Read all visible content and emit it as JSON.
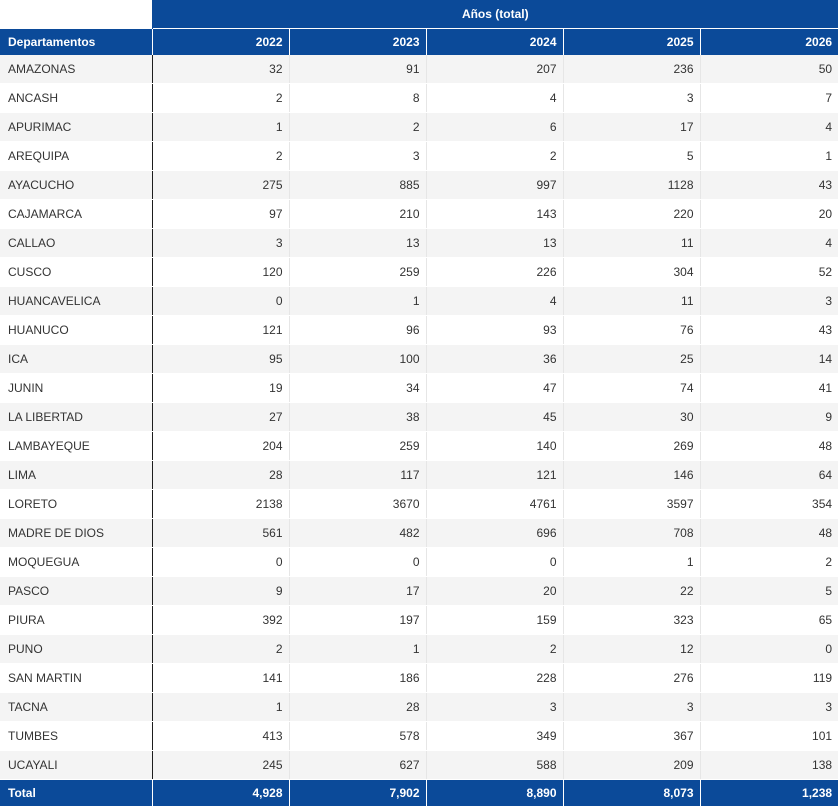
{
  "table": {
    "group_header": "Años (total)",
    "dept_header": "Departamentos",
    "years": [
      "2022",
      "2023",
      "2024",
      "2025",
      "2026"
    ],
    "rows": [
      {
        "dept": "AMAZONAS",
        "values": [
          "32",
          "91",
          "207",
          "236",
          "50"
        ]
      },
      {
        "dept": "ANCASH",
        "values": [
          "2",
          "8",
          "4",
          "3",
          "7"
        ]
      },
      {
        "dept": "APURIMAC",
        "values": [
          "1",
          "2",
          "6",
          "17",
          "4"
        ]
      },
      {
        "dept": "AREQUIPA",
        "values": [
          "2",
          "3",
          "2",
          "5",
          "1"
        ]
      },
      {
        "dept": "AYACUCHO",
        "values": [
          "275",
          "885",
          "997",
          "1128",
          "43"
        ]
      },
      {
        "dept": "CAJAMARCA",
        "values": [
          "97",
          "210",
          "143",
          "220",
          "20"
        ]
      },
      {
        "dept": "CALLAO",
        "values": [
          "3",
          "13",
          "13",
          "11",
          "4"
        ]
      },
      {
        "dept": "CUSCO",
        "values": [
          "120",
          "259",
          "226",
          "304",
          "52"
        ]
      },
      {
        "dept": "HUANCAVELICA",
        "values": [
          "0",
          "1",
          "4",
          "11",
          "3"
        ]
      },
      {
        "dept": "HUANUCO",
        "values": [
          "121",
          "96",
          "93",
          "76",
          "43"
        ]
      },
      {
        "dept": "ICA",
        "values": [
          "95",
          "100",
          "36",
          "25",
          "14"
        ]
      },
      {
        "dept": "JUNIN",
        "values": [
          "19",
          "34",
          "47",
          "74",
          "41"
        ]
      },
      {
        "dept": "LA LIBERTAD",
        "values": [
          "27",
          "38",
          "45",
          "30",
          "9"
        ]
      },
      {
        "dept": "LAMBAYEQUE",
        "values": [
          "204",
          "259",
          "140",
          "269",
          "48"
        ]
      },
      {
        "dept": "LIMA",
        "values": [
          "28",
          "117",
          "121",
          "146",
          "64"
        ]
      },
      {
        "dept": "LORETO",
        "values": [
          "2138",
          "3670",
          "4761",
          "3597",
          "354"
        ]
      },
      {
        "dept": "MADRE DE DIOS",
        "values": [
          "561",
          "482",
          "696",
          "708",
          "48"
        ]
      },
      {
        "dept": "MOQUEGUA",
        "values": [
          "0",
          "0",
          "0",
          "1",
          "2"
        ]
      },
      {
        "dept": "PASCO",
        "values": [
          "9",
          "17",
          "20",
          "22",
          "5"
        ]
      },
      {
        "dept": "PIURA",
        "values": [
          "392",
          "197",
          "159",
          "323",
          "65"
        ]
      },
      {
        "dept": "PUNO",
        "values": [
          "2",
          "1",
          "2",
          "12",
          "0"
        ]
      },
      {
        "dept": "SAN MARTIN",
        "values": [
          "141",
          "186",
          "228",
          "276",
          "119"
        ]
      },
      {
        "dept": "TACNA",
        "values": [
          "1",
          "28",
          "3",
          "3",
          "3"
        ]
      },
      {
        "dept": "TUMBES",
        "values": [
          "413",
          "578",
          "349",
          "367",
          "101"
        ]
      },
      {
        "dept": "UCAYALI",
        "values": [
          "245",
          "627",
          "588",
          "209",
          "138"
        ]
      }
    ],
    "total": {
      "label": "Total",
      "values": [
        "4,928",
        "7,902",
        "8,890",
        "8,073",
        "1,238"
      ]
    }
  },
  "colors": {
    "header_bg": "#0b4a99",
    "row_alt_bg": "#f4f4f4"
  }
}
